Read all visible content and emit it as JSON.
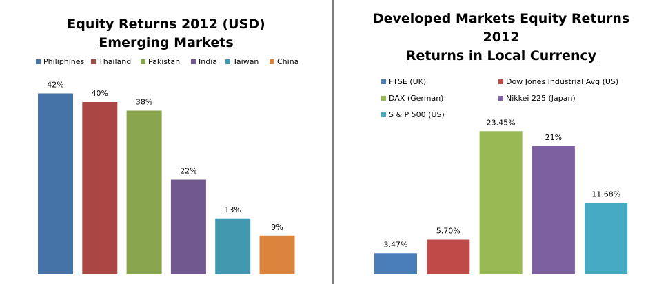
{
  "chart_data": [
    {
      "type": "bar",
      "title": "Equity Returns 2012 (USD)",
      "subtitle": "Emerging Markets",
      "categories": [
        "Philiphines",
        "Thailand",
        "Pakistan",
        "India",
        "Taiwan",
        "China"
      ],
      "values": [
        42,
        40,
        38,
        22,
        13,
        9
      ],
      "data_labels": [
        "42%",
        "40%",
        "38%",
        "22%",
        "13%",
        "9%"
      ],
      "colors": [
        "#4572a7",
        "#aa4643",
        "#89a54e",
        "#71588f",
        "#4198af",
        "#db843d"
      ],
      "ylim": [
        0,
        48
      ],
      "legend_position": "top",
      "grid": false
    },
    {
      "type": "bar",
      "title_line1": "Developed Markets Equity Returns",
      "title_line2": "2012",
      "subtitle": "Returns in Local Currency",
      "categories": [
        "FTSE (UK)",
        "Dow Jones Industrial Avg (US)",
        "DAX (German)",
        "Nikkei 225 (Japan)",
        "S & P 500 (US)"
      ],
      "values": [
        3.47,
        5.7,
        23.45,
        21,
        11.68
      ],
      "data_labels": [
        "3.47%",
        "5.70%",
        "23.45%",
        "21%",
        "11.68%"
      ],
      "colors": [
        "#4a7ebb",
        "#be4b48",
        "#98b954",
        "#7d60a0",
        "#46aac5"
      ],
      "ylim": [
        0,
        28
      ],
      "legend_position": "top",
      "grid": false
    }
  ]
}
